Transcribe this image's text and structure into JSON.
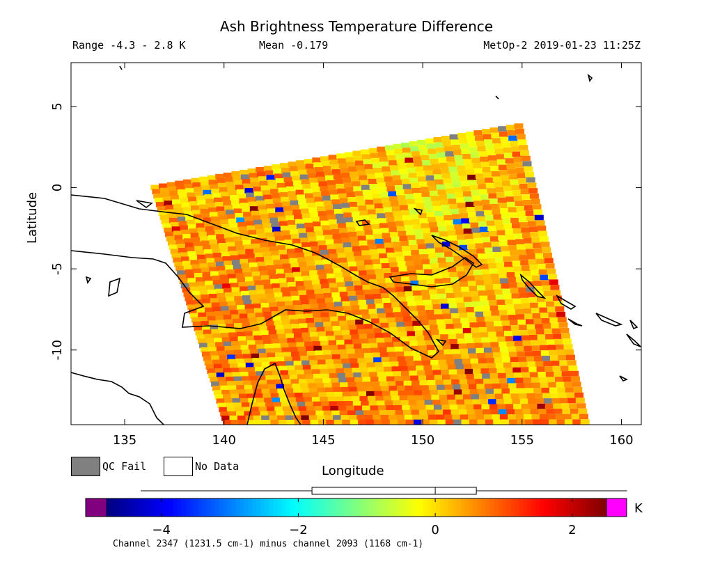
{
  "title": "Ash Brightness Temperature Difference",
  "subtitle": {
    "range": "Range -4.3 - 2.8 K",
    "mean": "Mean -0.179",
    "satellite_time": "MetOp-2 2019-01-23 11:25Z"
  },
  "legend": {
    "qc_fail_label": "QC Fail",
    "qc_fail_color": "#808080",
    "no_data_label": "No Data",
    "no_data_color": "#ffffff"
  },
  "chart_data": {
    "type": "heatmap",
    "title": "Ash Brightness Temperature Difference",
    "xlabel": "Longitude",
    "ylabel": "Latitude",
    "xlim": [
      132.3,
      161.0
    ],
    "ylim": [
      -14.6,
      7.7
    ],
    "xticks": [
      135,
      140,
      145,
      150,
      155,
      160
    ],
    "yticks": [
      5,
      0,
      -5,
      -10
    ],
    "grid": false,
    "swath_corners": [
      [
        136.3,
        0.1
      ],
      [
        155.0,
        4.0
      ],
      [
        158.4,
        -14.6
      ],
      [
        140.0,
        -14.6
      ]
    ],
    "range_min": -4.3,
    "range_max": 2.8,
    "mean": -0.179,
    "colorbar": {
      "min": -4.8,
      "max": 2.5,
      "ticks": [
        -4,
        -2,
        0,
        2
      ],
      "unit": "K",
      "caption": "Channel 2347 (1231.5 cm-1) minus channel 2093 (1168 cm-1)",
      "underflow_color": "#800080",
      "overflow_color": "#ff00ff",
      "colors": [
        "#00007f",
        "#0000ff",
        "#0080ff",
        "#00ffff",
        "#80ff80",
        "#ffff00",
        "#ff8000",
        "#ff0000",
        "#7f0000"
      ],
      "box_range": [
        -1.8,
        0.6
      ],
      "box_median": 0.0,
      "whisker_range": [
        -4.3,
        2.8
      ]
    }
  }
}
